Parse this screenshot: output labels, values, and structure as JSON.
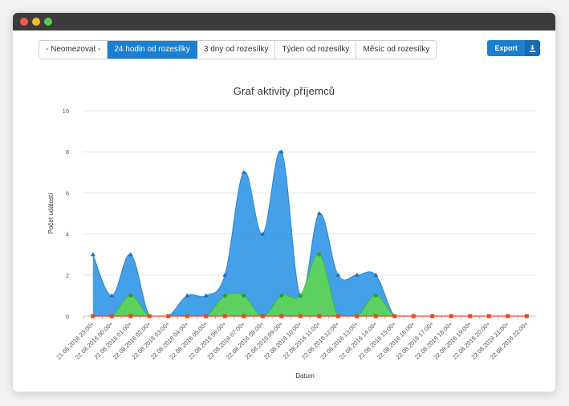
{
  "filters": [
    {
      "label": "- Neomezovat -",
      "active": false
    },
    {
      "label": "24 hodin od rozesílky",
      "active": true
    },
    {
      "label": "3 dny od rozesílky",
      "active": false
    },
    {
      "label": "Týden od rozesílky",
      "active": false
    },
    {
      "label": "Měsíc od rozesílky",
      "active": false
    }
  ],
  "export": {
    "label": "Export",
    "icon": "download-icon"
  },
  "colors": {
    "accent": "#1b7fd1",
    "series1": "#3a9be8",
    "series2": "#5fd35a",
    "series3": "#e8491d"
  },
  "chart_data": {
    "type": "area",
    "title": "Graf aktivity příjemců",
    "xlabel": "Datum",
    "ylabel": "Počet událostí",
    "ylim": [
      0,
      10
    ],
    "yticks": [
      0,
      2,
      4,
      6,
      8,
      10
    ],
    "grid": true,
    "categories": [
      "21.08.2016 23:00+",
      "22.08.2016 00:00+",
      "22.08.2016 01:00+",
      "22.08.2016 02:00+",
      "22.08.2016 03:00+",
      "22.08.2016 04:00+",
      "22.08.2016 05:00+",
      "22.08.2016 06:00+",
      "22.08.2016 07:00+",
      "22.08.2016 08:00+",
      "22.08.2016 09:00+",
      "22.08.2016 10:00+",
      "22.08.2016 11:00+",
      "22.08.2016 12:00+",
      "22.08.2016 13:00+",
      "22.08.2016 14:00+",
      "22.08.2016 15:00+",
      "22.08.2016 16:00+",
      "22.08.2016 17:00+",
      "22.08.2016 18:00+",
      "22.08.2016 19:00+",
      "22.08.2016 20:00+",
      "22.08.2016 21:00+",
      "22.08.2016 22:00+"
    ],
    "series": [
      {
        "values": [
          3,
          1,
          3,
          0,
          0,
          1,
          1,
          2,
          7,
          4,
          8,
          1,
          5,
          2,
          2,
          2,
          0,
          0,
          0,
          0,
          0,
          0,
          0,
          0
        ]
      },
      {
        "values": [
          0,
          0,
          1,
          0,
          0,
          0,
          0,
          1,
          1,
          0,
          1,
          1,
          3,
          0,
          0,
          1,
          0,
          0,
          0,
          0,
          0,
          0,
          0,
          0
        ]
      },
      {
        "values": [
          0,
          0,
          0,
          0,
          0,
          0,
          0,
          0,
          0,
          0,
          0,
          0,
          0,
          0,
          0,
          0,
          0,
          0,
          0,
          0,
          0,
          0,
          0,
          0
        ]
      }
    ]
  }
}
